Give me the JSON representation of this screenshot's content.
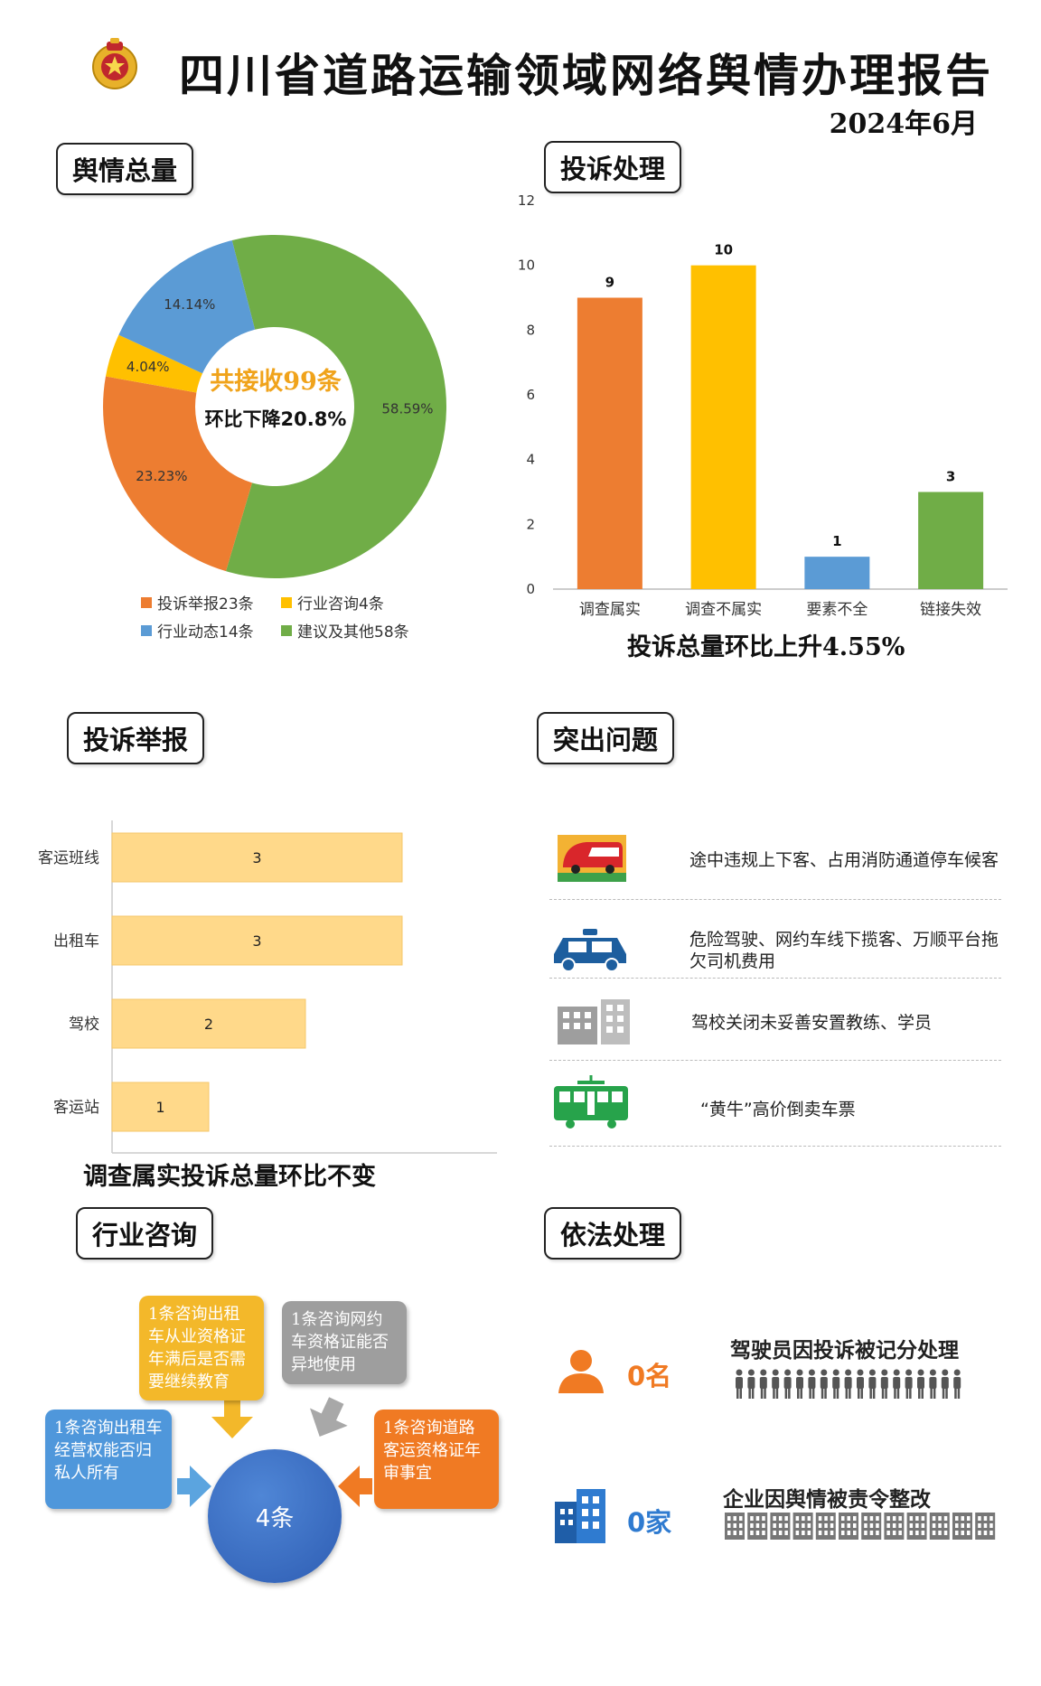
{
  "header": {
    "title": "四川省道路运输领域网络舆情办理报告",
    "date": "2024年6月"
  },
  "colors": {
    "orange": "#ED7D31",
    "yellow": "#FFC000",
    "blue": "#5B9BD5",
    "green": "#70AD47",
    "light_orange": "#FFD98A",
    "accent_text": "#F0A31B"
  },
  "sections": {
    "total": {
      "title": "舆情总量",
      "center_line1": "共接收99条",
      "center_line2": "环比下降20.8%",
      "legend": [
        "投诉举报23条",
        "行业咨询4条",
        "行业动态14条",
        "建议及其他58条"
      ]
    },
    "complaint_handling": {
      "title": "投诉处理",
      "caption": "投诉总量环比上升4.55%"
    },
    "complaint_report": {
      "title": "投诉举报",
      "caption": "调查属实投诉总量环比不变"
    },
    "issues": {
      "title": "突出问题",
      "items": [
        {
          "icon": "bus-icon",
          "text": "途中违规上下客、占用消防通道停车候客"
        },
        {
          "icon": "taxi-icon",
          "text": "危险驾驶、网约车线下揽客、万顺平台拖欠司机费用"
        },
        {
          "icon": "building-icon",
          "text": "驾校关闭未妥善安置教练、学员"
        },
        {
          "icon": "tram-icon",
          "text": "“黄牛”高价倒卖车票"
        }
      ]
    },
    "consult": {
      "title": "行业咨询",
      "center": "4条",
      "bubbles": [
        "1条咨询出租车从业资格证年满后是否需要继续教育",
        "1条咨询网约车资格证能否异地使用",
        "1条咨询出租车经营权能否归私人所有",
        "1条咨询道路客运资格证年审事宜"
      ]
    },
    "legal": {
      "title": "依法处理",
      "drivers": {
        "count": "0名",
        "label": "驾驶员因投诉被记分处理"
      },
      "companies": {
        "count": "0家",
        "label": "企业因舆情被责令整改"
      }
    }
  },
  "chart_data": [
    {
      "type": "pie",
      "categories": [
        "投诉举报",
        "行业咨询",
        "行业动态",
        "建议及其他"
      ],
      "values": [
        23,
        4,
        14,
        58
      ],
      "labels": [
        "23.23%",
        "4.04%",
        "14.14%",
        "58.59%"
      ]
    },
    {
      "type": "bar",
      "categories": [
        "调查属实",
        "调查不属实",
        "要素不全",
        "链接失效"
      ],
      "values": [
        9,
        10,
        1,
        3
      ],
      "ylim": [
        0,
        12
      ],
      "yticks": [
        0,
        2,
        4,
        6,
        8,
        10,
        12
      ]
    },
    {
      "type": "bar",
      "orientation": "horizontal",
      "categories": [
        "客运班线",
        "出租车",
        "驾校",
        "客运站"
      ],
      "values": [
        3,
        3,
        2,
        1
      ],
      "xlim": [
        0,
        4
      ]
    }
  ]
}
